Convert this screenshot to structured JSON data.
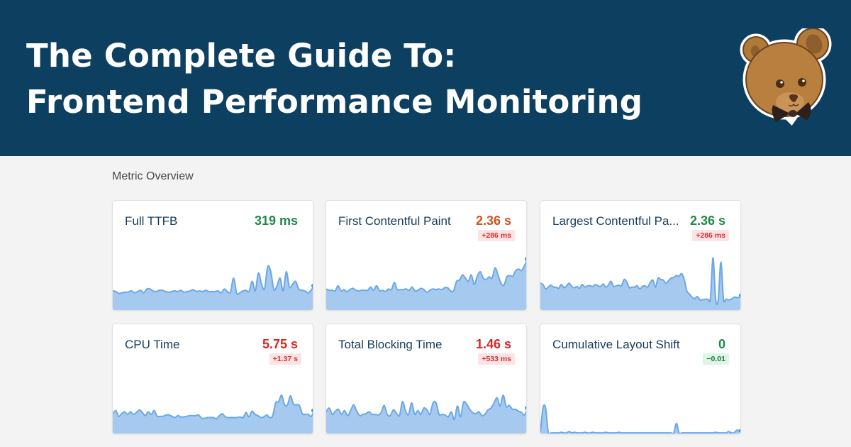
{
  "hero": {
    "title_line1": "The Complete Guide To:",
    "title_line2": "Frontend Performance Monitoring",
    "background": "#0d4060",
    "mascot": "bear-with-bowtie-logo"
  },
  "section": {
    "title": "Metric Overview"
  },
  "colors": {
    "good": "#1f8a45",
    "warn": "#d4531a",
    "bad": "#d92626",
    "spark_fill": "#a6c9f0",
    "spark_line": "#6aa8e6",
    "spark_dot": "#2196f3"
  },
  "metrics": [
    {
      "name": "Full TTFB",
      "value": "319 ms",
      "status": "good",
      "delta": null,
      "spark": [
        0.3,
        0.29,
        0.26,
        0.27,
        0.28,
        0.28,
        0.3,
        0.27,
        0.29,
        0.31,
        0.27,
        0.33,
        0.33,
        0.3,
        0.29,
        0.31,
        0.31,
        0.29,
        0.28,
        0.29,
        0.3,
        0.29,
        0.31,
        0.28,
        0.29,
        0.3,
        0.32,
        0.29,
        0.3,
        0.29,
        0.31,
        0.29,
        0.29,
        0.29,
        0.3,
        0.27,
        0.33,
        0.29,
        0.28,
        0.5,
        0.26,
        0.27,
        0.3,
        0.31,
        0.29,
        0.45,
        0.3,
        0.58,
        0.41,
        0.33,
        0.68,
        0.6,
        0.32,
        0.38,
        0.5,
        0.3,
        0.6,
        0.36,
        0.4,
        0.45,
        0.33,
        0.31,
        0.3,
        0.27,
        0.31,
        0.38
      ]
    },
    {
      "name": "First Contentful Paint",
      "value": "2.36 s",
      "status": "warn",
      "delta": "+286 ms",
      "delta_status": "bad",
      "spark": [
        0.33,
        0.31,
        0.31,
        0.3,
        0.38,
        0.3,
        0.32,
        0.29,
        0.32,
        0.34,
        0.31,
        0.3,
        0.31,
        0.31,
        0.31,
        0.36,
        0.31,
        0.38,
        0.3,
        0.31,
        0.29,
        0.33,
        0.32,
        0.43,
        0.32,
        0.32,
        0.32,
        0.33,
        0.31,
        0.36,
        0.3,
        0.31,
        0.34,
        0.32,
        0.28,
        0.31,
        0.33,
        0.32,
        0.33,
        0.32,
        0.35,
        0.35,
        0.3,
        0.3,
        0.45,
        0.47,
        0.55,
        0.5,
        0.45,
        0.55,
        0.4,
        0.53,
        0.6,
        0.5,
        0.48,
        0.52,
        0.5,
        0.66,
        0.55,
        0.42,
        0.39,
        0.52,
        0.54,
        0.53,
        0.62,
        0.64,
        0.62,
        0.7,
        0.8
      ]
    },
    {
      "name": "Largest Contentful Pa...",
      "value": "2.36 s",
      "status": "good",
      "delta": "+286 ms",
      "delta_status": "bad",
      "spark": [
        0.42,
        0.4,
        0.33,
        0.36,
        0.39,
        0.36,
        0.36,
        0.34,
        0.4,
        0.35,
        0.38,
        0.42,
        0.37,
        0.35,
        0.37,
        0.34,
        0.4,
        0.36,
        0.38,
        0.38,
        0.37,
        0.4,
        0.38,
        0.37,
        0.41,
        0.36,
        0.39,
        0.45,
        0.37,
        0.38,
        0.39,
        0.38,
        0.48,
        0.44,
        0.35,
        0.36,
        0.36,
        0.38,
        0.33,
        0.37,
        0.38,
        0.36,
        0.43,
        0.47,
        0.36,
        0.5,
        0.48,
        0.47,
        0.42,
        0.46,
        0.5,
        0.51,
        0.54,
        0.53,
        0.57,
        0.48,
        0.3,
        0.25,
        0.2,
        0.18,
        0.21,
        0.16,
        0.16,
        0.17,
        0.17,
        0.18,
        0.82,
        0.17,
        0.16,
        0.75,
        0.17,
        0.17,
        0.16,
        0.17,
        0.2,
        0.2,
        0.2,
        0.23
      ]
    },
    {
      "name": "CPU Time",
      "value": "5.75 s",
      "status": "bad",
      "delta": "+1.37 s",
      "delta_status": "bad",
      "spark": [
        0.31,
        0.36,
        0.27,
        0.31,
        0.34,
        0.3,
        0.34,
        0.3,
        0.33,
        0.37,
        0.33,
        0.28,
        0.34,
        0.3,
        0.36,
        0.27,
        0.27,
        0.27,
        0.29,
        0.29,
        0.27,
        0.25,
        0.28,
        0.26,
        0.26,
        0.27,
        0.28,
        0.28,
        0.28,
        0.29,
        0.24,
        0.24,
        0.25,
        0.25,
        0.25,
        0.23,
        0.28,
        0.31,
        0.26,
        0.25,
        0.25,
        0.25,
        0.25,
        0.26,
        0.25,
        0.33,
        0.26,
        0.35,
        0.3,
        0.28,
        0.25,
        0.26,
        0.29,
        0.25,
        0.28,
        0.48,
        0.5,
        0.6,
        0.45,
        0.45,
        0.59,
        0.46,
        0.45,
        0.44,
        0.31,
        0.3,
        0.3,
        0.27,
        0.36
      ]
    },
    {
      "name": "Total Blocking Time",
      "value": "1.46 s",
      "status": "bad",
      "delta": "+533 ms",
      "delta_status": "bad",
      "spark": [
        0.34,
        0.4,
        0.3,
        0.35,
        0.38,
        0.3,
        0.36,
        0.28,
        0.36,
        0.45,
        0.35,
        0.28,
        0.3,
        0.31,
        0.34,
        0.3,
        0.3,
        0.29,
        0.33,
        0.44,
        0.3,
        0.28,
        0.37,
        0.32,
        0.28,
        0.5,
        0.35,
        0.3,
        0.48,
        0.3,
        0.36,
        0.3,
        0.4,
        0.37,
        0.3,
        0.48,
        0.48,
        0.3,
        0.3,
        0.29,
        0.26,
        0.34,
        0.22,
        0.43,
        0.26,
        0.49,
        0.46,
        0.38,
        0.33,
        0.31,
        0.34,
        0.28,
        0.3,
        0.37,
        0.4,
        0.48,
        0.56,
        0.43,
        0.6,
        0.42,
        0.44,
        0.38,
        0.38,
        0.35,
        0.33,
        0.29,
        0.4
      ]
    },
    {
      "name": "Cumulative Layout Shift",
      "value": "0",
      "status": "good",
      "delta": "−0.01",
      "delta_status": "good",
      "spark": [
        0.01,
        0.4,
        0.4,
        0.02,
        0.01,
        0.01,
        0.01,
        0.01,
        0.02,
        0.01,
        0.01,
        0.03,
        0.01,
        0.02,
        0.01,
        0.01,
        0.01,
        0.02,
        0.01,
        0.01,
        0.02,
        0.01,
        0.01,
        0.01,
        0.01,
        0.02,
        0.01,
        0.01,
        0.01,
        0.01,
        0.02,
        0.01,
        0.01,
        0.01,
        0.01,
        0.01,
        0.01,
        0.01,
        0.01,
        0.01,
        0.01,
        0.01,
        0.01,
        0.01,
        0.01,
        0.01,
        0.01,
        0.01,
        0.01,
        0.01,
        0.01,
        0.01,
        0.16,
        0.01,
        0.01,
        0.01,
        0.01,
        0.01,
        0.01,
        0.01,
        0.01,
        0.01,
        0.01,
        0.01,
        0.01,
        0.01,
        0.01,
        0.02,
        0.01,
        0.01,
        0.01,
        0.01,
        0.03,
        0.01,
        0.01,
        0.05,
        0.05,
        0.04
      ]
    }
  ]
}
